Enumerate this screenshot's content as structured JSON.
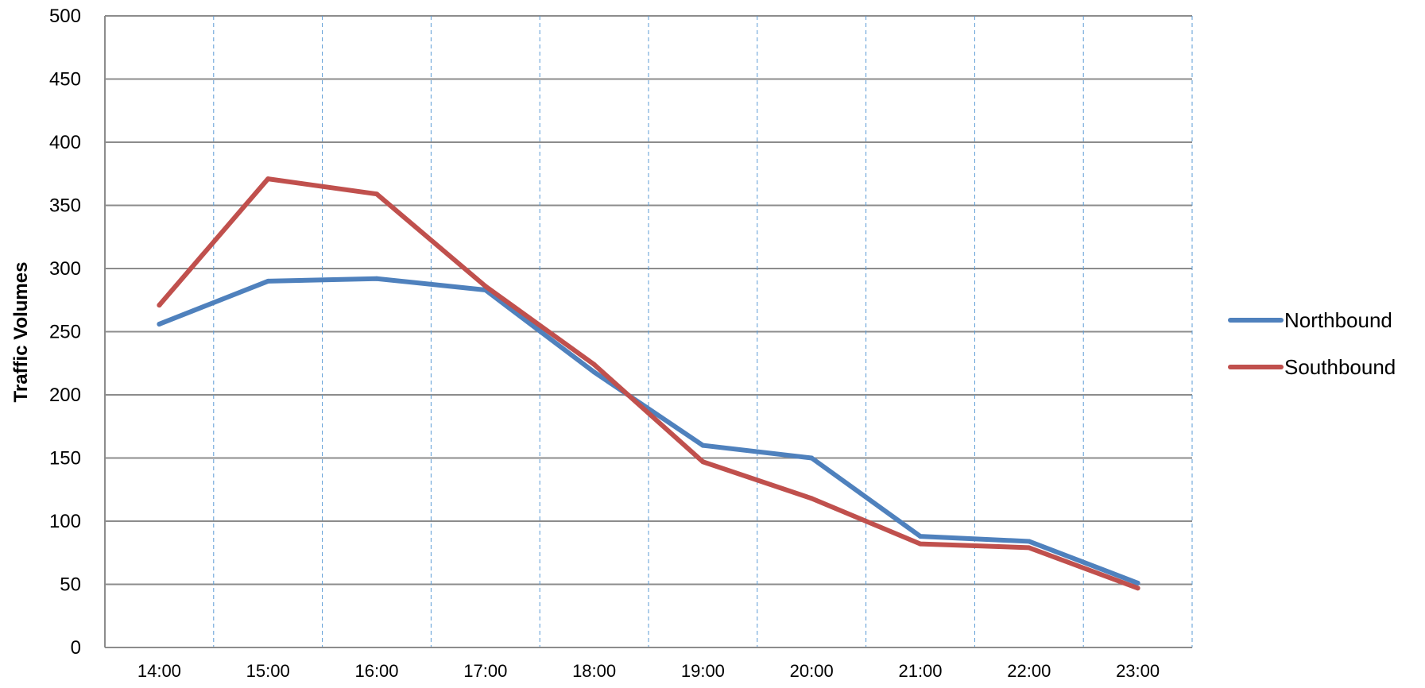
{
  "chart_data": {
    "type": "line",
    "title": "",
    "xlabel": "",
    "ylabel": "Traffic Volumes",
    "categories": [
      "14:00",
      "15:00",
      "16:00",
      "17:00",
      "18:00",
      "19:00",
      "20:00",
      "21:00",
      "22:00",
      "23:00"
    ],
    "ylim": [
      0,
      500
    ],
    "yticks": [
      "0",
      "50",
      "100",
      "150",
      "200",
      "250",
      "300",
      "350",
      "400",
      "450",
      "500"
    ],
    "grid": {
      "horizontal": true,
      "vertical": "dashed"
    },
    "legend": "right",
    "series": [
      {
        "name": "Northbound",
        "color": "#4f81bd",
        "values": [
          256,
          290,
          292,
          283,
          218,
          160,
          150,
          88,
          84,
          51
        ]
      },
      {
        "name": "Southbound",
        "color": "#c0504d",
        "values": [
          271,
          371,
          359,
          286,
          224,
          147,
          118,
          82,
          79,
          47
        ]
      }
    ]
  }
}
